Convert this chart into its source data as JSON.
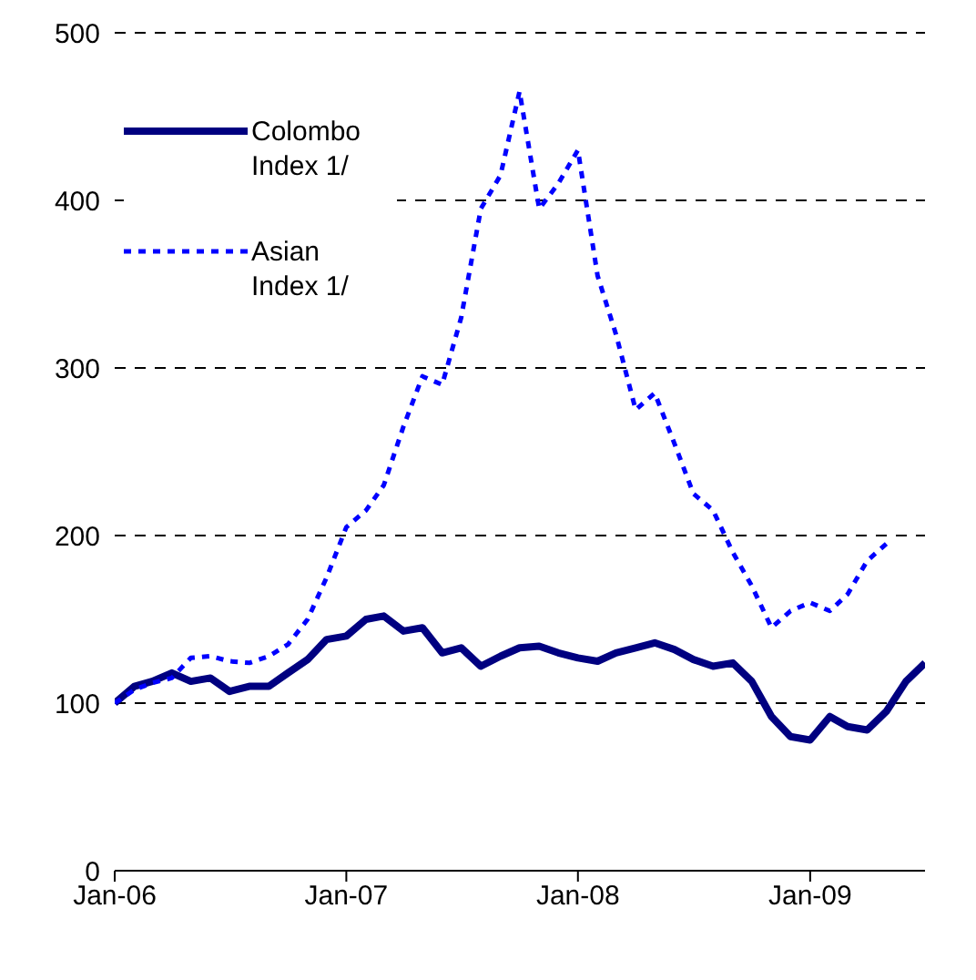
{
  "chart_data": {
    "type": "line",
    "x": [
      "2006-01",
      "2006-02",
      "2006-03",
      "2006-04",
      "2006-05",
      "2006-06",
      "2006-07",
      "2006-08",
      "2006-09",
      "2006-10",
      "2006-11",
      "2006-12",
      "2007-01",
      "2007-02",
      "2007-03",
      "2007-04",
      "2007-05",
      "2007-06",
      "2007-07",
      "2007-08",
      "2007-09",
      "2007-10",
      "2007-11",
      "2007-12",
      "2008-01",
      "2008-02",
      "2008-03",
      "2008-04",
      "2008-05",
      "2008-06",
      "2008-07",
      "2008-08",
      "2008-09",
      "2008-10",
      "2008-11",
      "2008-12",
      "2009-01",
      "2009-02",
      "2009-03",
      "2009-04",
      "2009-05",
      "2009-06",
      "2009-07"
    ],
    "series": [
      {
        "name": "Colombo Index 1/",
        "color": "#000080",
        "line_style": "solid",
        "values": [
          100,
          110,
          113,
          118,
          113,
          115,
          107,
          110,
          110,
          118,
          126,
          138,
          140,
          150,
          152,
          143,
          145,
          130,
          133,
          122,
          128,
          133,
          134,
          130,
          127,
          125,
          130,
          133,
          136,
          132,
          126,
          122,
          124,
          113,
          92,
          80,
          78,
          92,
          86,
          84,
          95,
          113,
          124
        ]
      },
      {
        "name": "Asian Index 1/",
        "color": "#0000ff",
        "line_style": "dotted",
        "values": [
          100,
          108,
          112,
          115,
          127,
          128,
          125,
          124,
          128,
          135,
          150,
          175,
          205,
          215,
          230,
          265,
          295,
          290,
          330,
          395,
          415,
          465,
          395,
          410,
          430,
          355,
          320,
          275,
          285,
          255,
          225,
          215,
          190,
          170,
          145,
          155,
          160,
          155,
          165,
          185,
          195,
          null,
          null
        ]
      }
    ],
    "xlim": [
      "2006-01",
      "2009-07"
    ],
    "xticks": [
      {
        "value": "2006-01",
        "label": "Jan-06"
      },
      {
        "value": "2007-01",
        "label": "Jan-07"
      },
      {
        "value": "2008-01",
        "label": "Jan-08"
      },
      {
        "value": "2009-01",
        "label": "Jan-09"
      }
    ],
    "ylim": [
      0,
      500
    ],
    "yticks": [
      0,
      100,
      200,
      300,
      400,
      500
    ],
    "grid": "y",
    "legend": "top left",
    "marker": "none"
  }
}
